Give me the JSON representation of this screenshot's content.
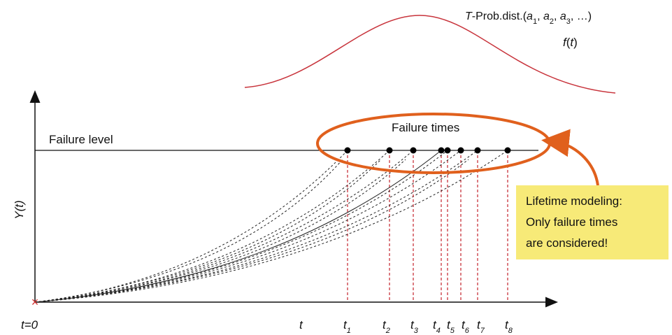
{
  "distribution": {
    "label_parts": [
      "T",
      "-Prob.dist.(",
      "a",
      "1",
      ", ",
      "a",
      "2",
      ", ",
      "a",
      "3",
      ", …)"
    ],
    "function_parts": [
      "f",
      "(",
      "t",
      ")"
    ]
  },
  "failure_times_label": "Failure times",
  "failure_level_label": "Failure level",
  "y_axis_label": "Y(t)",
  "origin_label": "t=0",
  "t_label": "t",
  "time_labels": [
    {
      "base": "t",
      "sub": "1"
    },
    {
      "base": "t",
      "sub": "2"
    },
    {
      "base": "t",
      "sub": "3"
    },
    {
      "base": "t",
      "sub": "4"
    },
    {
      "base": "t",
      "sub": "5"
    },
    {
      "base": "t",
      "sub": "6"
    },
    {
      "base": "t",
      "sub": "7"
    },
    {
      "base": "t",
      "sub": "8"
    }
  ],
  "callout": {
    "lines": [
      "Lifetime modeling:",
      "Only failure times",
      "are considered!"
    ]
  }
}
